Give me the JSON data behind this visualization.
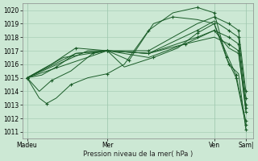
{
  "bg_color": "#cce8d4",
  "grid_color": "#a0c8b0",
  "line_color": "#1a5c28",
  "ylabel": "Pression niveau de la mer( hPa )",
  "ylim": [
    1010.5,
    1020.5
  ],
  "yticks": [
    1011,
    1012,
    1013,
    1014,
    1015,
    1016,
    1017,
    1018,
    1019,
    1020
  ],
  "xlabels": [
    "Madeu",
    "Mer",
    "Ven",
    "Sam|"
  ],
  "xtick_positions": [
    0,
    0.33,
    0.77,
    0.9
  ],
  "figsize": [
    3.2,
    2.0
  ],
  "dpi": 100,
  "series": [
    {
      "x": [
        0.0,
        0.05,
        0.08,
        0.12,
        0.18,
        0.25,
        0.33,
        0.4,
        0.5,
        0.6,
        0.7,
        0.77,
        0.82,
        0.86,
        0.9
      ],
      "y": [
        1015.0,
        1013.5,
        1013.1,
        1013.5,
        1014.5,
        1015.0,
        1015.3,
        1016.0,
        1018.5,
        1019.8,
        1020.2,
        1019.8,
        1016.5,
        1015.0,
        1011.5
      ],
      "marker_every": [
        0,
        2,
        4,
        6,
        8,
        10,
        11,
        12,
        13,
        14
      ]
    },
    {
      "x": [
        0.0,
        0.05,
        0.1,
        0.18,
        0.27,
        0.33,
        0.42,
        0.52,
        0.6,
        0.7,
        0.77,
        0.82,
        0.86,
        0.9
      ],
      "y": [
        1015.0,
        1014.0,
        1014.8,
        1015.5,
        1016.8,
        1017.0,
        1016.3,
        1019.0,
        1019.5,
        1019.3,
        1019.0,
        1016.8,
        1015.2,
        1011.8
      ],
      "marker_every": [
        0,
        2,
        4,
        6,
        8,
        10,
        12,
        13
      ]
    },
    {
      "x": [
        0.0,
        0.06,
        0.12,
        0.2,
        0.33,
        0.4,
        0.52,
        0.62,
        0.7,
        0.77,
        0.83,
        0.87,
        0.9
      ],
      "y": [
        1015.0,
        1015.2,
        1015.8,
        1016.8,
        1017.0,
        1015.8,
        1016.5,
        1017.2,
        1018.3,
        1019.0,
        1016.0,
        1015.3,
        1011.2
      ],
      "marker_every": [
        0,
        2,
        4,
        6,
        8,
        10,
        12
      ]
    },
    {
      "x": [
        0.0,
        0.1,
        0.2,
        0.33,
        0.5,
        0.65,
        0.77,
        0.83,
        0.87,
        0.9
      ],
      "y": [
        1015.0,
        1016.0,
        1017.2,
        1017.0,
        1016.8,
        1017.5,
        1018.5,
        1017.2,
        1016.8,
        1012.8
      ],
      "marker_every": [
        0,
        2,
        4,
        6,
        8,
        9
      ]
    },
    {
      "x": [
        0.0,
        0.15,
        0.33,
        0.5,
        0.65,
        0.77,
        0.83,
        0.87,
        0.9
      ],
      "y": [
        1015.0,
        1016.5,
        1017.0,
        1016.5,
        1017.5,
        1018.0,
        1017.5,
        1017.0,
        1012.5
      ],
      "marker_every": [
        0,
        2,
        4,
        6,
        7,
        8
      ]
    },
    {
      "x": [
        0.0,
        0.2,
        0.33,
        0.5,
        0.7,
        0.77,
        0.83,
        0.87,
        0.9
      ],
      "y": [
        1015.0,
        1016.8,
        1017.0,
        1016.8,
        1018.0,
        1018.5,
        1018.0,
        1017.5,
        1013.0
      ],
      "marker_every": [
        0,
        2,
        4,
        6,
        7,
        8
      ]
    },
    {
      "x": [
        0.0,
        0.25,
        0.33,
        0.5,
        0.7,
        0.77,
        0.83,
        0.87,
        0.9
      ],
      "y": [
        1015.0,
        1017.0,
        1017.0,
        1016.8,
        1018.5,
        1019.2,
        1018.5,
        1018.0,
        1013.5
      ],
      "marker_every": [
        0,
        2,
        4,
        6,
        7,
        8
      ]
    },
    {
      "x": [
        0.0,
        0.33,
        0.5,
        0.7,
        0.77,
        0.83,
        0.87,
        0.9
      ],
      "y": [
        1015.0,
        1017.0,
        1017.0,
        1019.0,
        1019.5,
        1019.0,
        1018.5,
        1014.0
      ],
      "marker_every": [
        0,
        2,
        4,
        5,
        6,
        7
      ]
    }
  ]
}
